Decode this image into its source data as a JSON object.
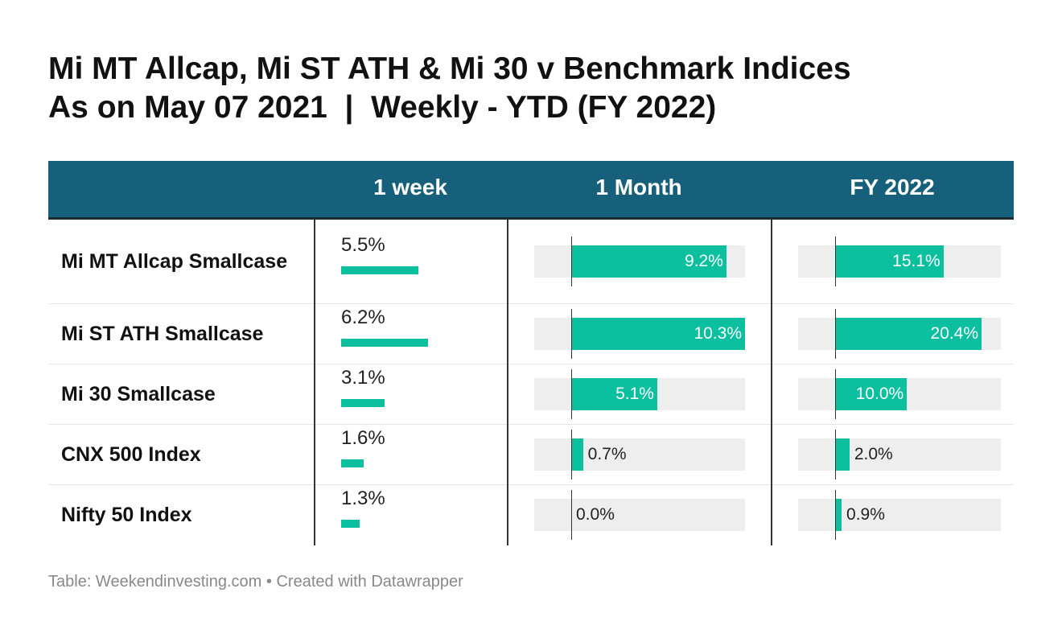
{
  "title": {
    "line1": "Mi MT Allcap, Mi ST ATH & Mi 30 v Benchmark Indices",
    "line2": "As on May 07 2021  |  Weekly - YTD (FY 2022)"
  },
  "footer": {
    "source": "Table: Weekendinvesting.com",
    "separator": "•",
    "credit": "Created with Datawrapper"
  },
  "colors": {
    "header_bg": "#17607b",
    "bar": "#0bbf9f",
    "track": "#eeeeee"
  },
  "chart_data": {
    "type": "table",
    "columns": [
      "",
      "1 week",
      "1 Month",
      "FY 2022"
    ],
    "rows": [
      {
        "name": "Mi MT Allcap Smallcase",
        "week": 5.5,
        "week_label": "5.5%",
        "month": 9.2,
        "month_label": "9.2%",
        "fy": 15.1,
        "fy_label": "15.1%"
      },
      {
        "name": "Mi ST ATH Smallcase",
        "week": 6.2,
        "week_label": "6.2%",
        "month": 10.3,
        "month_label": "10.3%",
        "fy": 20.4,
        "fy_label": "20.4%"
      },
      {
        "name": "Mi 30 Smallcase",
        "week": 3.1,
        "week_label": "3.1%",
        "month": 5.1,
        "month_label": "5.1%",
        "fy": 10.0,
        "fy_label": "10.0%"
      },
      {
        "name": "CNX 500 Index",
        "week": 1.6,
        "week_label": "1.6%",
        "month": 0.7,
        "month_label": "0.7%",
        "fy": 2.0,
        "fy_label": "2.0%"
      },
      {
        "name": "Nifty 50 Index",
        "week": 1.3,
        "week_label": "1.3%",
        "month": 0.0,
        "month_label": "0.0%",
        "fy": 0.9,
        "fy_label": "0.9%"
      }
    ]
  }
}
